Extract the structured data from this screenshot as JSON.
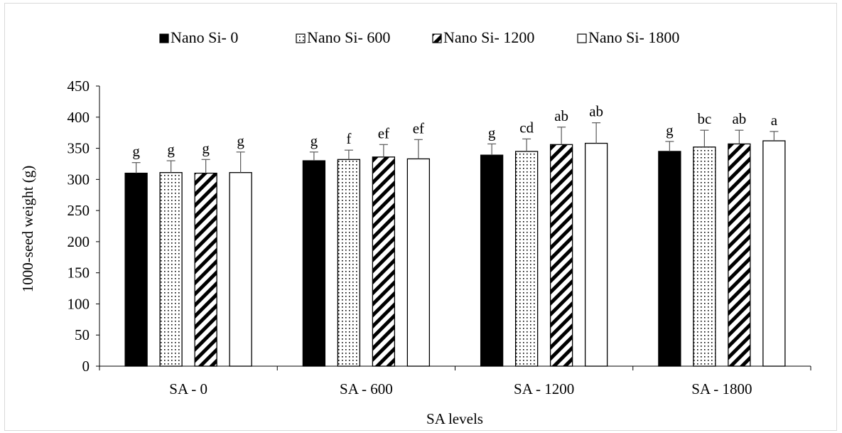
{
  "chart_data": {
    "type": "bar",
    "title": "",
    "xlabel": "SA levels",
    "ylabel": "1000-seed weight (g)",
    "ylim": [
      0,
      450
    ],
    "yticks": [
      0,
      50,
      100,
      150,
      200,
      250,
      300,
      350,
      400,
      450
    ],
    "ytick_labels": [
      "0",
      "50",
      "100",
      "150",
      "200",
      "250",
      "300",
      "350",
      "400",
      "450"
    ],
    "categories": [
      "SA - 0",
      "SA - 600",
      "SA - 1200",
      "SA - 1800"
    ],
    "grid": false,
    "legend_position": "top",
    "series": [
      {
        "name": "Nano Si- 0",
        "pattern": "solid-black",
        "values": [
          310,
          330,
          339,
          345
        ],
        "errors": [
          17,
          14,
          18,
          16
        ],
        "labels": [
          "g",
          "g",
          "g",
          "g"
        ]
      },
      {
        "name": "Nano Si- 600",
        "pattern": "dots",
        "values": [
          311,
          332,
          345,
          352
        ],
        "errors": [
          19,
          15,
          20,
          27
        ],
        "labels": [
          "g",
          "f",
          "cd",
          "bc"
        ]
      },
      {
        "name": "Nano Si- 1200",
        "pattern": "diagonal-stripes",
        "values": [
          310,
          336,
          356,
          357
        ],
        "errors": [
          22,
          20,
          28,
          22
        ],
        "labels": [
          "g",
          "ef",
          "ab",
          "ab"
        ]
      },
      {
        "name": "Nano Si- 1800",
        "pattern": "white",
        "values": [
          311,
          333,
          358,
          362
        ],
        "errors": [
          33,
          31,
          33,
          15
        ],
        "labels": [
          "g",
          "ef",
          "ab",
          "a"
        ]
      }
    ]
  }
}
